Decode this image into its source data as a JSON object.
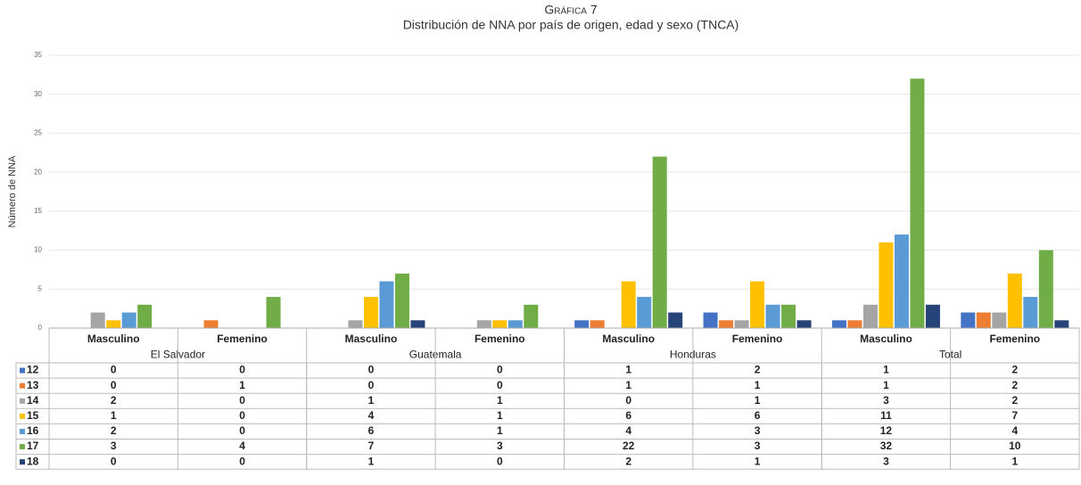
{
  "chart_data": {
    "type": "bar",
    "title": "Gráfica 7",
    "subtitle": "Distribución de NNA por país de origen, edad y sexo (TNCA)",
    "y_label": "Número de NNA",
    "categories": [
      "Masculino",
      "Femenino",
      "Masculino",
      "Femenino",
      "Masculino",
      "Femenino",
      "Masculino",
      "Femenino"
    ],
    "groups": [
      "El Salvador",
      "Guatemala",
      "Honduras",
      "Total"
    ],
    "series": [
      {
        "name": "12",
        "color": "#4472c4",
        "values": [
          0,
          0,
          0,
          0,
          1,
          2,
          1,
          2
        ]
      },
      {
        "name": "13",
        "color": "#ed7d31",
        "values": [
          0,
          1,
          0,
          0,
          1,
          1,
          1,
          2
        ]
      },
      {
        "name": "14",
        "color": "#a5a5a5",
        "values": [
          2,
          0,
          1,
          1,
          0,
          1,
          3,
          2
        ]
      },
      {
        "name": "15",
        "color": "#ffc000",
        "values": [
          1,
          0,
          4,
          1,
          6,
          6,
          11,
          7
        ]
      },
      {
        "name": "16",
        "color": "#5b9bd5",
        "values": [
          2,
          0,
          6,
          1,
          4,
          3,
          12,
          4
        ]
      },
      {
        "name": "17",
        "color": "#70ad47",
        "values": [
          3,
          4,
          7,
          3,
          22,
          3,
          32,
          10
        ]
      },
      {
        "name": "18",
        "color": "#264478",
        "values": [
          0,
          0,
          1,
          0,
          2,
          1,
          3,
          1
        ]
      }
    ],
    "ylim": [
      0,
      35
    ],
    "yticks": [
      0,
      5,
      10,
      15,
      20,
      25,
      30,
      35
    ],
    "grid": true
  }
}
